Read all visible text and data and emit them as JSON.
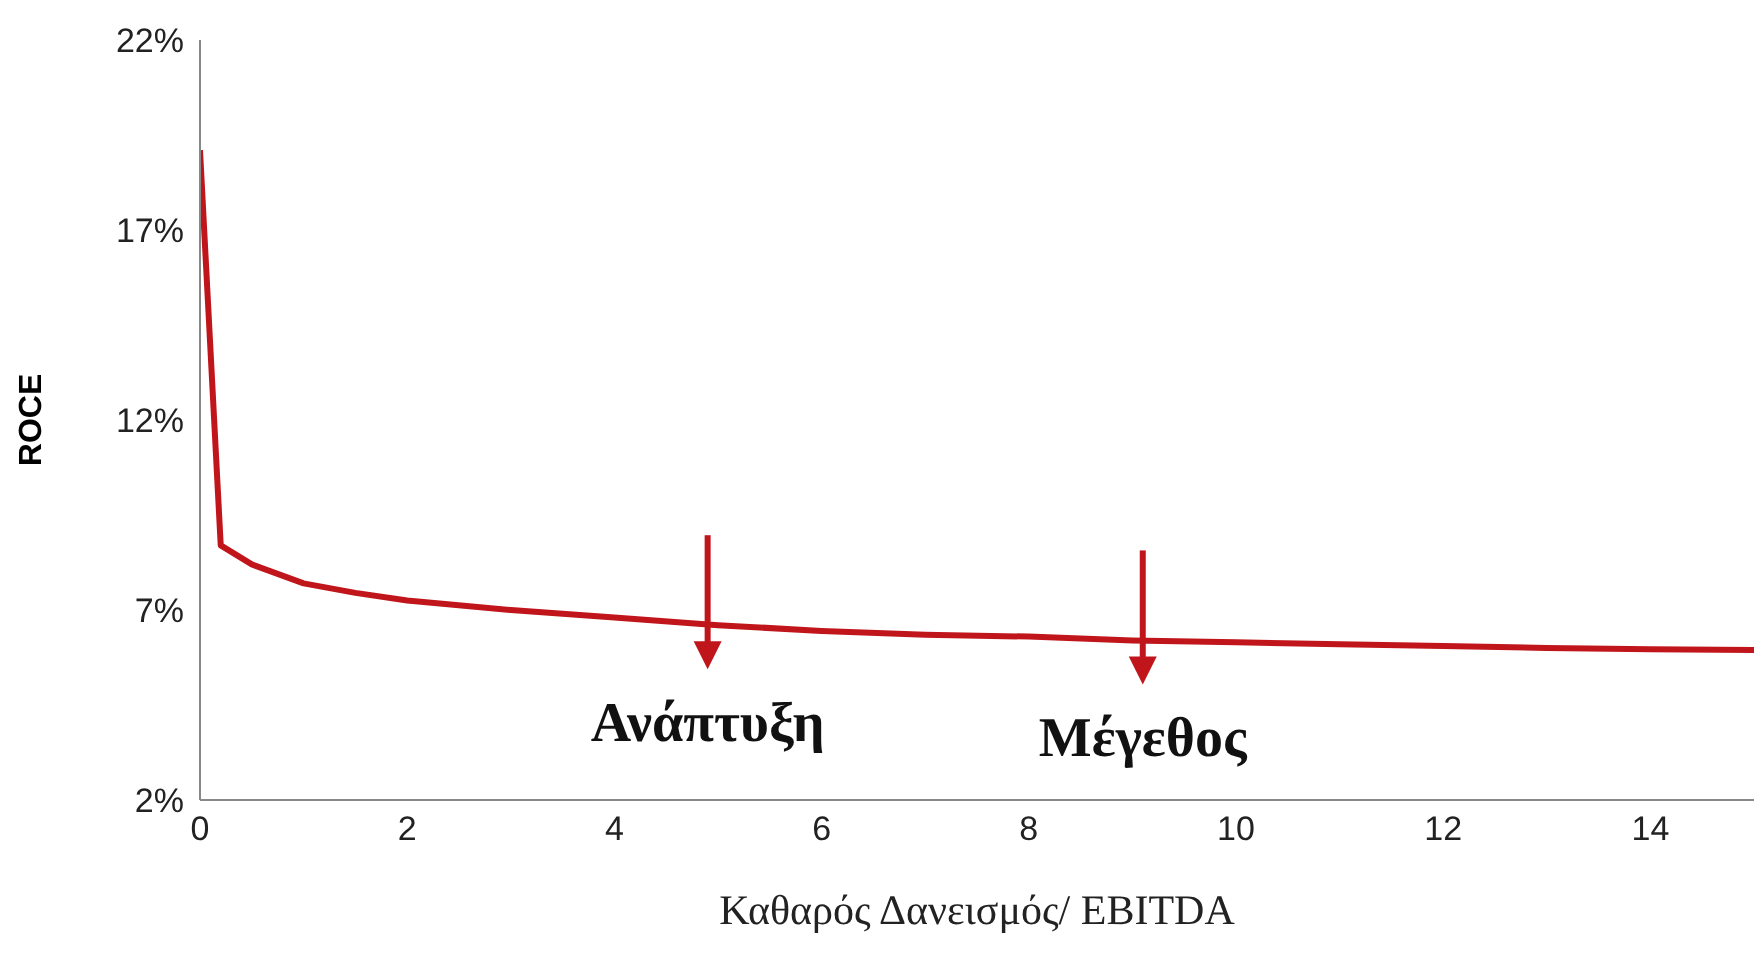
{
  "chart_data": {
    "type": "line",
    "xlabel": "Καθαρός Δανεισμός/ EBITDA",
    "ylabel": "ROCE",
    "x": [
      0,
      0.2,
      0.5,
      1,
      1.5,
      2,
      3,
      4,
      5,
      6,
      7,
      8,
      9,
      10,
      11,
      12,
      13,
      14,
      15
    ],
    "series": [
      {
        "color": "#c0161b",
        "values": [
          19.1,
          8.7,
          8.2,
          7.7,
          7.45,
          7.25,
          7.0,
          6.8,
          6.6,
          6.45,
          6.35,
          6.3,
          6.2,
          6.15,
          6.1,
          6.05,
          6.0,
          5.97,
          5.95
        ]
      }
    ],
    "xlim": [
      0,
      15
    ],
    "xticks": [
      0,
      2,
      4,
      6,
      8,
      10,
      12,
      14
    ],
    "ylim": [
      2,
      22
    ],
    "yticks": [
      {
        "value": 2,
        "label": "2%"
      },
      {
        "value": 7,
        "label": "7%"
      },
      {
        "value": 12,
        "label": "12%"
      },
      {
        "value": 17,
        "label": "17%"
      },
      {
        "value": 22,
        "label": "22%"
      }
    ],
    "annotations": [
      {
        "text": "Ανάπτυξη",
        "x": 4.9,
        "y": 6.6
      },
      {
        "text": "Μέγεθος",
        "x": 9.1,
        "y": 6.2
      }
    ],
    "grid": false,
    "legend": false,
    "marker": "none",
    "line_style": "solid"
  }
}
